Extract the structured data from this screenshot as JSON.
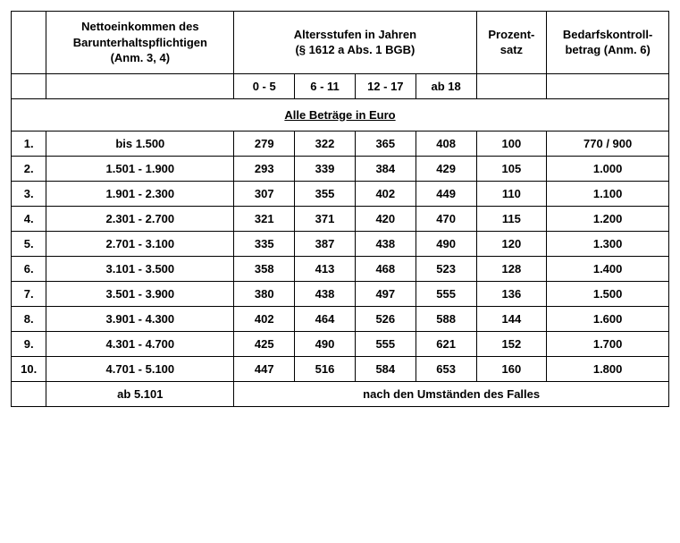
{
  "headers": {
    "income": "Nettoeinkommen des\nBarunterhaltspflichtigen\n(Anm. 3, 4)",
    "ages": "Altersstufen in Jahren\n(§ 1612 a Abs. 1 BGB)",
    "percent": "Prozent-\nsatz",
    "bedarf": "Bedarfskontroll-\nbetrag (Anm. 6)",
    "age_cols": [
      "0 - 5",
      "6 - 11",
      "12 - 17",
      "ab 18"
    ]
  },
  "euro_note": "Alle Beträge in Euro",
  "rows": [
    {
      "n": "1.",
      "income": "bis 1.500",
      "a": [
        "279",
        "322",
        "365",
        "408"
      ],
      "pct": "100",
      "bedarf": "770 / 900"
    },
    {
      "n": "2.",
      "income": "1.501 - 1.900",
      "a": [
        "293",
        "339",
        "384",
        "429"
      ],
      "pct": "105",
      "bedarf": "1.000"
    },
    {
      "n": "3.",
      "income": "1.901 - 2.300",
      "a": [
        "307",
        "355",
        "402",
        "449"
      ],
      "pct": "110",
      "bedarf": "1.100"
    },
    {
      "n": "4.",
      "income": "2.301 - 2.700",
      "a": [
        "321",
        "371",
        "420",
        "470"
      ],
      "pct": "115",
      "bedarf": "1.200"
    },
    {
      "n": "5.",
      "income": "2.701 - 3.100",
      "a": [
        "335",
        "387",
        "438",
        "490"
      ],
      "pct": "120",
      "bedarf": "1.300"
    },
    {
      "n": "6.",
      "income": "3.101 - 3.500",
      "a": [
        "358",
        "413",
        "468",
        "523"
      ],
      "pct": "128",
      "bedarf": "1.400"
    },
    {
      "n": "7.",
      "income": "3.501 - 3.900",
      "a": [
        "380",
        "438",
        "497",
        "555"
      ],
      "pct": "136",
      "bedarf": "1.500"
    },
    {
      "n": "8.",
      "income": "3.901 - 4.300",
      "a": [
        "402",
        "464",
        "526",
        "588"
      ],
      "pct": "144",
      "bedarf": "1.600"
    },
    {
      "n": "9.",
      "income": "4.301 - 4.700",
      "a": [
        "425",
        "490",
        "555",
        "621"
      ],
      "pct": "152",
      "bedarf": "1.700"
    },
    {
      "n": "10.",
      "income": "4.701 - 5.100",
      "a": [
        "447",
        "516",
        "584",
        "653"
      ],
      "pct": "160",
      "bedarf": "1.800"
    }
  ],
  "last_row": {
    "income": "ab 5.101",
    "text": "nach den Umständen des Falles"
  },
  "style": {
    "font_family": "Arial",
    "font_size_pt": 10,
    "border_color": "#000000",
    "background_color": "#ffffff",
    "text_color": "#000000"
  }
}
